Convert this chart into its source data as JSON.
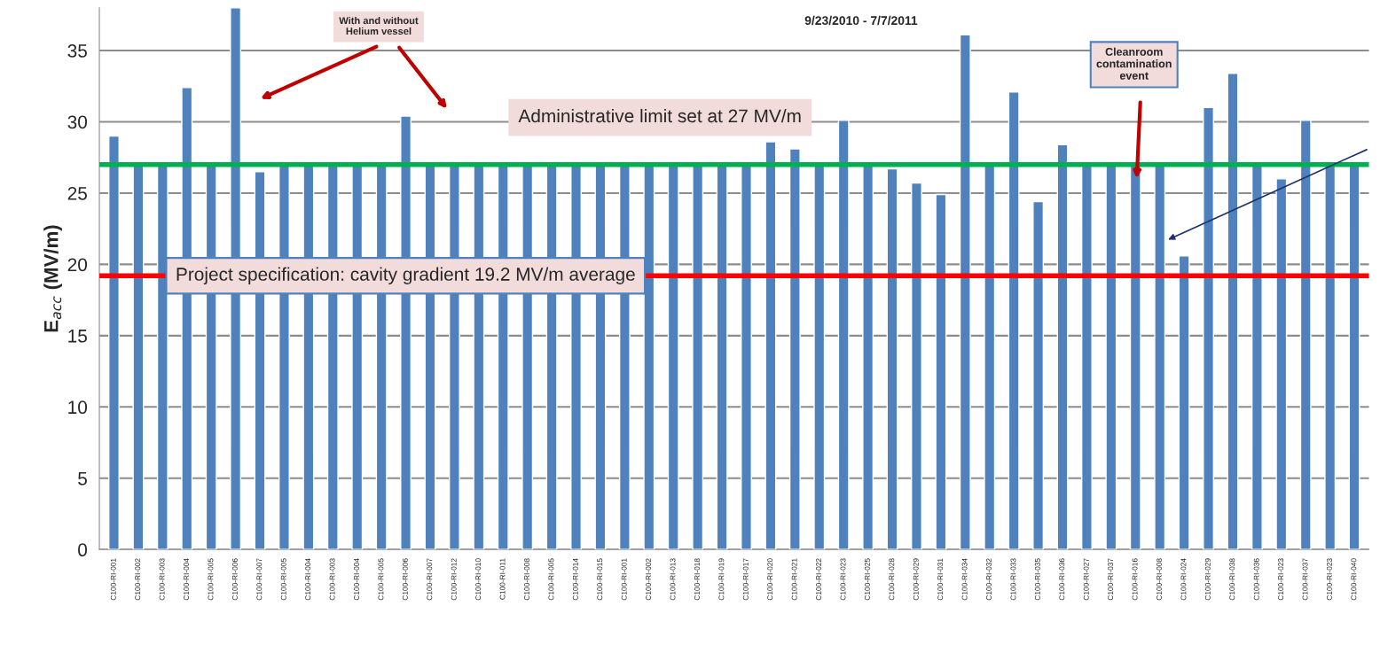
{
  "chart_data": {
    "type": "bar",
    "title": "9/23/2010 - 7/7/2011",
    "ylabel": "E$_{acc}$ (MV/m)",
    "categories": [
      "C100-RI-001",
      "C100-RI-002",
      "C100-RI-003",
      "C100-RI-004",
      "C100-RI-005",
      "C100-RI-006",
      "C100-RI-007",
      "C100-RI-005",
      "C100-RI-004",
      "C100-RI-003",
      "C100-RI-004",
      "C100-RI-005",
      "C100-RI-006",
      "C100-RI-007",
      "C100-RI-012",
      "C100-RI-010",
      "C100-RI-011",
      "C100-RI-008",
      "C100-RI-005",
      "C100-RI-014",
      "C100-RI-015",
      "C100-RI-001",
      "C100-RI-002",
      "C100-RI-013",
      "C100-RI-018",
      "C100-RI-019",
      "C100-RI-017",
      "C100-RI-020",
      "C100-RI-021",
      "C100-RI-022",
      "C100-RI-023",
      "C100-RI-025",
      "C100-RI-028",
      "C100-RI-029",
      "C100-RI-031",
      "C100-RI-034",
      "C100-RI-032",
      "C100-RI-033",
      "C100-RI-035",
      "C100-RI-036",
      "C100-RI-027",
      "C100-RI-037",
      "C100-RI-016",
      "C100-RI-008",
      "C100-RI-024",
      "C100-RI-029",
      "C100-RI-038",
      "C100-RI-036",
      "C100-RI-023",
      "C100-RI-037",
      "C100-RI-023",
      "C100-RI-040"
    ],
    "values": [
      29.0,
      27,
      27,
      32.4,
      27,
      38,
      26.5,
      27,
      27,
      27,
      27,
      27,
      30.4,
      27,
      27,
      27,
      27,
      27,
      27,
      27,
      27,
      27,
      27,
      27,
      27,
      27,
      27,
      28.6,
      28.1,
      27,
      30.1,
      27,
      26.7,
      25.7,
      24.9,
      36.1,
      27,
      32.1,
      24.4,
      28.4,
      27,
      27,
      27,
      27,
      20.6,
      31.0,
      33.4,
      27,
      26.0,
      30.1,
      27,
      27
    ],
    "color": "#4f81bd",
    "ylim": [
      0,
      38
    ],
    "yticks": [
      0,
      5,
      10,
      15,
      20,
      25,
      30,
      35
    ],
    "grid": "y",
    "ref_lines": [
      {
        "axis": "y",
        "value": 27,
        "label": "Administrative limit set at 27 MV/m",
        "color": "#00b050"
      },
      {
        "axis": "y",
        "value": 19.2,
        "label": "Project specification: cavity gradient 19.2 MV/m average",
        "color": "#ff0000"
      }
    ],
    "annotations": [
      "With and without\nHelium vessel",
      "Cleanroom\ncontamination\nevent"
    ]
  }
}
